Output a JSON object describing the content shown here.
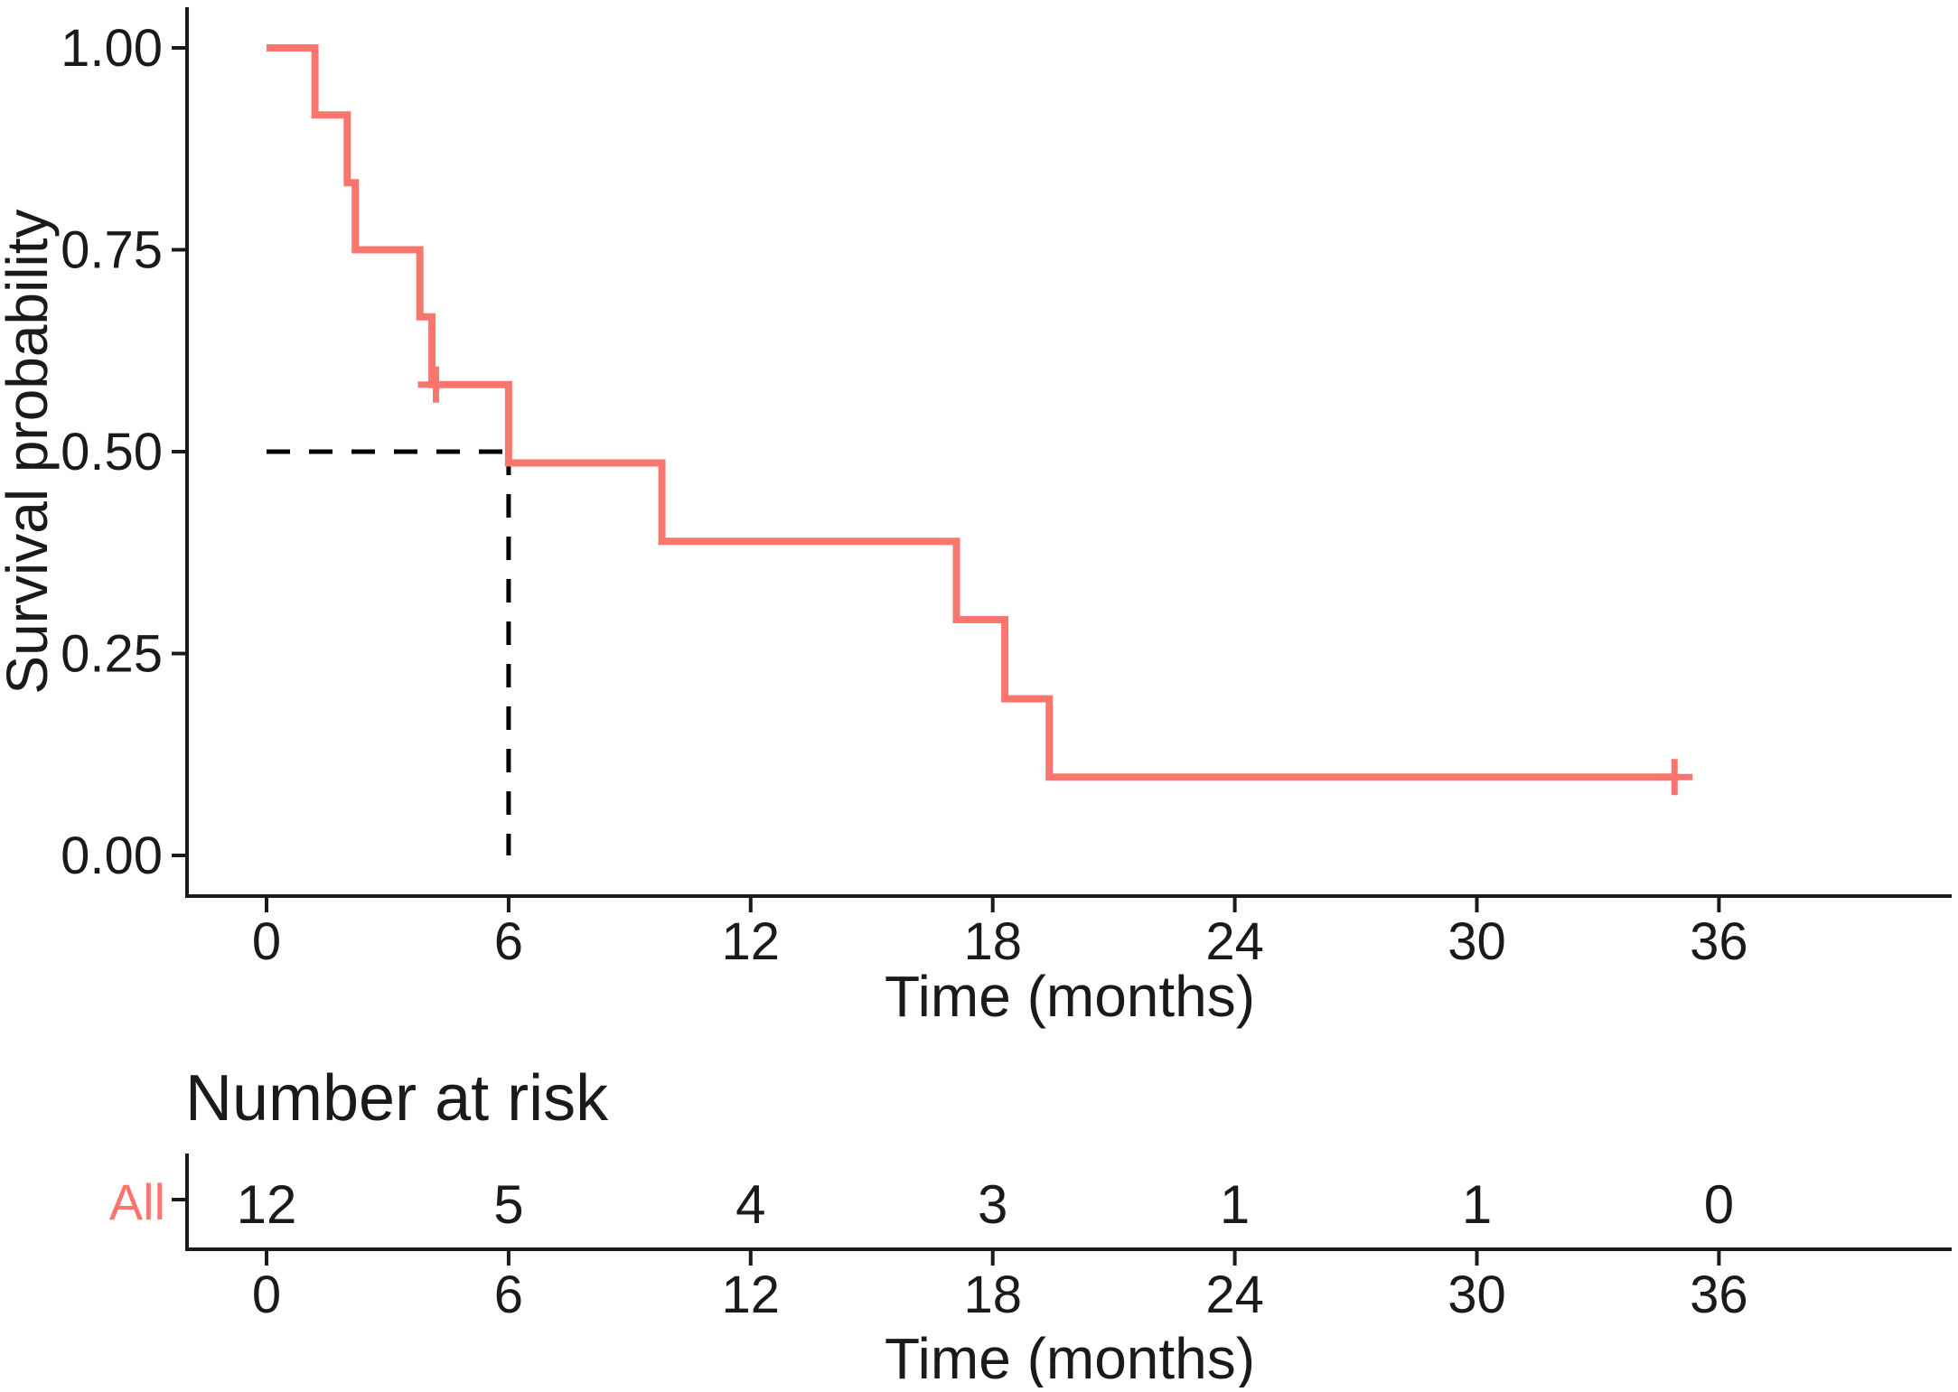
{
  "chart_data": {
    "type": "line",
    "subtype": "kaplan-meier-step",
    "title": "",
    "xlabel": "Time (months)",
    "ylabel": "Survival probability",
    "x_ticks": [
      0,
      6,
      12,
      18,
      24,
      30,
      36
    ],
    "y_ticks": [
      {
        "v": 1.0,
        "label": "1.00"
      },
      {
        "v": 0.75,
        "label": "0.75"
      },
      {
        "v": 0.5,
        "label": "0.50"
      },
      {
        "v": 0.25,
        "label": "0.25"
      },
      {
        "v": 0.0,
        "label": "0.00"
      }
    ],
    "xlim": [
      0,
      41.8
    ],
    "ylim": [
      0,
      1
    ],
    "grid": false,
    "legend_position": "none",
    "series": [
      {
        "name": "All",
        "color": "#F8766D",
        "steps": [
          {
            "t": 0.0,
            "s": 1.0
          },
          {
            "t": 1.2,
            "s": 0.917
          },
          {
            "t": 2.0,
            "s": 0.833
          },
          {
            "t": 2.2,
            "s": 0.75
          },
          {
            "t": 3.8,
            "s": 0.667
          },
          {
            "t": 4.1,
            "s": 0.583
          },
          {
            "t": 6.0,
            "s": 0.486
          },
          {
            "t": 9.8,
            "s": 0.389
          },
          {
            "t": 17.1,
            "s": 0.292
          },
          {
            "t": 18.3,
            "s": 0.194
          },
          {
            "t": 19.4,
            "s": 0.097
          }
        ],
        "end_t": 34.9,
        "censors": [
          {
            "t": 4.2,
            "s": 0.583
          },
          {
            "t": 34.9,
            "s": 0.097
          }
        ]
      }
    ],
    "median_annotation": {
      "t": 6,
      "s": 0.5
    },
    "risk_table": {
      "title": "Number at risk",
      "row_label": "All",
      "times": [
        0,
        6,
        12,
        18,
        24,
        30,
        36
      ],
      "values": [
        "12",
        "5",
        "4",
        "3",
        "1",
        "1",
        "0"
      ],
      "xlabel": "Time (months)"
    }
  },
  "colors": {
    "curve": "#F8766D",
    "axis": "#1A1A1A",
    "text": "#1A1A1A",
    "dashed": "#000000"
  }
}
